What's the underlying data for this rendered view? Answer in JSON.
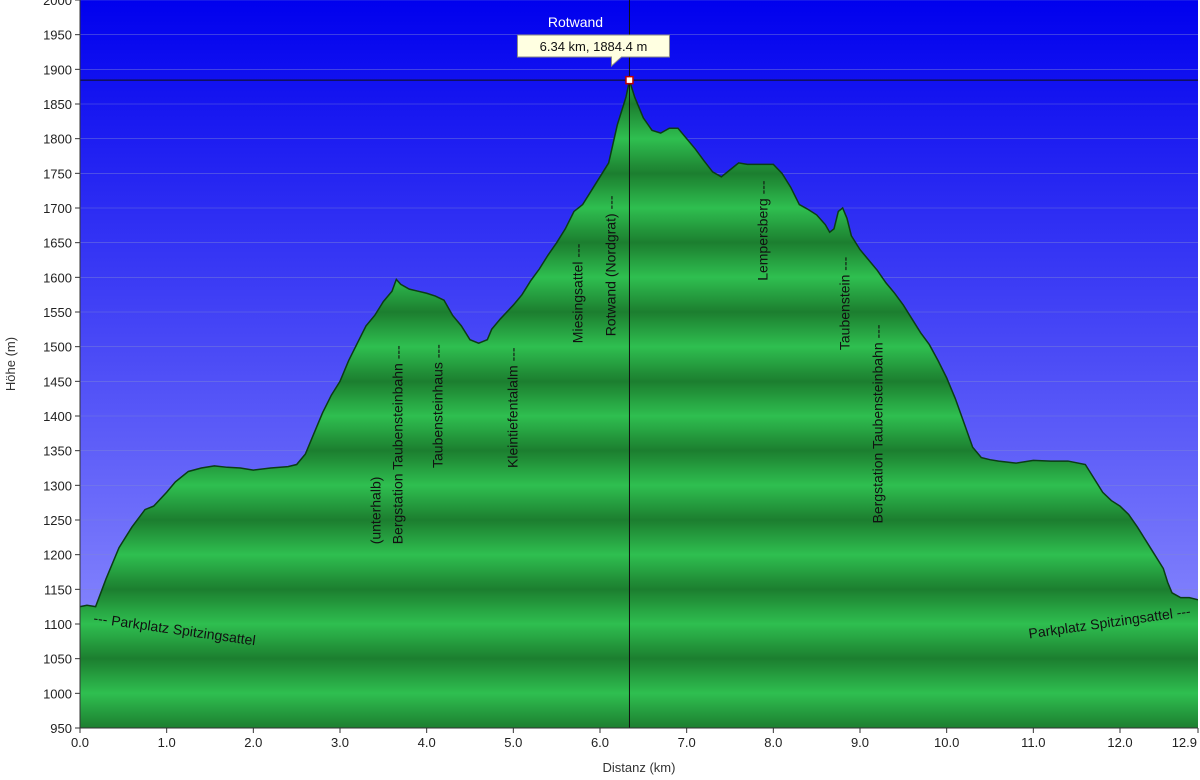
{
  "chart_data": {
    "type": "area",
    "title": "",
    "xlabel": "Distanz  (km)",
    "ylabel": "Höhe (m)",
    "xlim": [
      0.0,
      12.9
    ],
    "ylim": [
      950,
      2000
    ],
    "x_ticks": [
      "0.0",
      "1.0",
      "2.0",
      "3.0",
      "4.0",
      "5.0",
      "6.0",
      "7.0",
      "8.0",
      "9.0",
      "10.0",
      "11.0",
      "12.0",
      "12.9"
    ],
    "x_tick_values": [
      0,
      1,
      2,
      3,
      4,
      5,
      6,
      7,
      8,
      9,
      10,
      11,
      12,
      12.9
    ],
    "y_ticks": [
      "950",
      "1000",
      "1050",
      "1100",
      "1150",
      "1200",
      "1250",
      "1300",
      "1350",
      "1400",
      "1450",
      "1500",
      "1550",
      "1600",
      "1650",
      "1700",
      "1750",
      "1800",
      "1850",
      "1900",
      "1950",
      "2000"
    ],
    "y_tick_values": [
      950,
      1000,
      1050,
      1100,
      1150,
      1200,
      1250,
      1300,
      1350,
      1400,
      1450,
      1500,
      1550,
      1600,
      1650,
      1700,
      1750,
      1800,
      1850,
      1900,
      1950,
      2000
    ],
    "grid": true,
    "colors": {
      "sky_top": "#0000ee",
      "sky_bottom": "#9a9aff",
      "fill_light": "#2bb34a",
      "fill_dark": "#18702a",
      "outline": "#0b3d14"
    },
    "series": [
      {
        "x": [
          0.0,
          0.08,
          0.18,
          0.3,
          0.45,
          0.6,
          0.75,
          0.85,
          1.0,
          1.1,
          1.25,
          1.4,
          1.55,
          1.7,
          1.85,
          2.0,
          2.2,
          2.4,
          2.5,
          2.6,
          2.7,
          2.8,
          2.9,
          3.0,
          3.1,
          3.2,
          3.3,
          3.4,
          3.5,
          3.6,
          3.65,
          3.7,
          3.8,
          3.9,
          4.0,
          4.1,
          4.2,
          4.3,
          4.4,
          4.5,
          4.6,
          4.7,
          4.75,
          4.85,
          5.0,
          5.1,
          5.2,
          5.3,
          5.4,
          5.5,
          5.6,
          5.7,
          5.8,
          5.9,
          6.0,
          6.1,
          6.2,
          6.3,
          6.34,
          6.4,
          6.5,
          6.6,
          6.7,
          6.8,
          6.9,
          7.0,
          7.1,
          7.2,
          7.3,
          7.4,
          7.5,
          7.6,
          7.7,
          7.8,
          7.9,
          8.0,
          8.1,
          8.2,
          8.3,
          8.4,
          8.5,
          8.6,
          8.65,
          8.7,
          8.75,
          8.8,
          8.85,
          8.9,
          9.0,
          9.1,
          9.2,
          9.3,
          9.4,
          9.5,
          9.6,
          9.7,
          9.8,
          9.9,
          10.0,
          10.1,
          10.2,
          10.3,
          10.4,
          10.5,
          10.6,
          10.8,
          11.0,
          11.2,
          11.4,
          11.6,
          11.7,
          11.8,
          11.9,
          12.0,
          12.1,
          12.2,
          12.3,
          12.4,
          12.5,
          12.55,
          12.6,
          12.7,
          12.8,
          12.9
        ],
        "y": [
          1125,
          1127,
          1125,
          1165,
          1210,
          1240,
          1265,
          1270,
          1290,
          1305,
          1320,
          1325,
          1328,
          1326,
          1325,
          1322,
          1325,
          1327,
          1330,
          1345,
          1375,
          1405,
          1430,
          1450,
          1480,
          1505,
          1530,
          1545,
          1565,
          1580,
          1597,
          1590,
          1583,
          1580,
          1577,
          1573,
          1567,
          1545,
          1530,
          1510,
          1505,
          1510,
          1525,
          1540,
          1560,
          1575,
          1595,
          1612,
          1632,
          1650,
          1670,
          1695,
          1705,
          1725,
          1745,
          1765,
          1820,
          1860,
          1884,
          1860,
          1830,
          1812,
          1808,
          1815,
          1815,
          1800,
          1785,
          1768,
          1752,
          1745,
          1755,
          1765,
          1763,
          1763,
          1763,
          1763,
          1750,
          1730,
          1705,
          1698,
          1690,
          1676,
          1665,
          1670,
          1695,
          1700,
          1685,
          1660,
          1640,
          1625,
          1610,
          1592,
          1577,
          1560,
          1540,
          1520,
          1503,
          1480,
          1455,
          1425,
          1390,
          1355,
          1340,
          1337,
          1335,
          1332,
          1336,
          1335,
          1335,
          1330,
          1310,
          1290,
          1278,
          1270,
          1258,
          1240,
          1220,
          1200,
          1180,
          1160,
          1145,
          1138,
          1138,
          1135
        ]
      }
    ],
    "annotations": [
      {
        "text": "--- Parkplatz Spitzingsattel",
        "x": 0.15,
        "y": 1102,
        "rotate": 8,
        "anchor": "start"
      },
      {
        "text": "(unterhalb)",
        "x": 3.47,
        "y": 1215,
        "rotate": -90,
        "anchor": "start"
      },
      {
        "text": "Bergstation Taubensteinbahn ---",
        "x": 3.72,
        "y": 1215,
        "rotate": -90,
        "anchor": "start"
      },
      {
        "text": "Taubensteinhaus ---",
        "x": 4.18,
        "y": 1325,
        "rotate": -90,
        "anchor": "start"
      },
      {
        "text": "Kleintiefentalalm ---",
        "x": 5.05,
        "y": 1325,
        "rotate": -90,
        "anchor": "start"
      },
      {
        "text": "Miesingsattel ---",
        "x": 5.8,
        "y": 1505,
        "rotate": -90,
        "anchor": "start"
      },
      {
        "text": "Rotwand (Nordgrat) ---",
        "x": 6.18,
        "y": 1515,
        "rotate": -90,
        "anchor": "start"
      },
      {
        "text": "Lempersberg ---",
        "x": 7.93,
        "y": 1595,
        "rotate": -90,
        "anchor": "start"
      },
      {
        "text": "Taubenstein ---",
        "x": 8.88,
        "y": 1495,
        "rotate": -90,
        "anchor": "start"
      },
      {
        "text": "Bergstation Taubensteinbahn ---",
        "x": 9.26,
        "y": 1245,
        "rotate": -90,
        "anchor": "start"
      },
      {
        "text": "Parkplatz Spitzingsattel ---",
        "x": 12.82,
        "y": 1112,
        "rotate": -8,
        "anchor": "end"
      }
    ],
    "highlight": {
      "x": 6.34,
      "y": 1884.4,
      "name": "Rotwand",
      "callout": "6.34 km, 1884.4 m"
    }
  }
}
